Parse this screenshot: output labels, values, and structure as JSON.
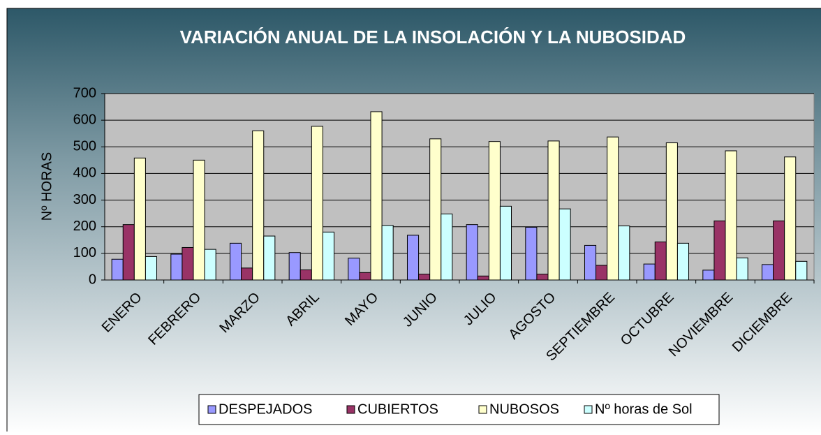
{
  "chart_data": {
    "type": "bar",
    "title": "VARIACIÓN ANUAL DE LA INSOLACIÓN Y LA NUBOSIDAD",
    "y_label": "Nº HORAS",
    "categories": [
      "ENERO",
      "FEBRERO",
      "MARZO",
      "ABRIL",
      "MAYO",
      "JUNIO",
      "JULIO",
      "AGOSTO",
      "SEPTIEMBRE",
      "OCTUBRE",
      "NOVIEMBRE",
      "DICIEMBRE"
    ],
    "series": [
      {
        "name": "DESPEJADOS",
        "color": "#9999ff",
        "values": [
          78,
          97,
          138,
          103,
          82,
          168,
          208,
          198,
          130,
          60,
          37,
          58
        ]
      },
      {
        "name": "CUBIERTOS",
        "color": "#993366",
        "values": [
          208,
          122,
          45,
          38,
          28,
          22,
          15,
          22,
          55,
          143,
          222,
          222
        ]
      },
      {
        "name": "NUBOSOS",
        "color": "#ffffcc",
        "values": [
          458,
          450,
          560,
          577,
          632,
          530,
          520,
          522,
          537,
          515,
          485,
          462
        ]
      },
      {
        "name": "Nº horas de Sol",
        "color": "#ccffff",
        "values": [
          88,
          115,
          165,
          180,
          205,
          248,
          277,
          267,
          203,
          138,
          83,
          70
        ]
      }
    ],
    "ylim": [
      0,
      700
    ],
    "yticks": [
      0,
      100,
      200,
      300,
      400,
      500,
      600,
      700
    ],
    "grid": true,
    "legend": "bottom"
  }
}
